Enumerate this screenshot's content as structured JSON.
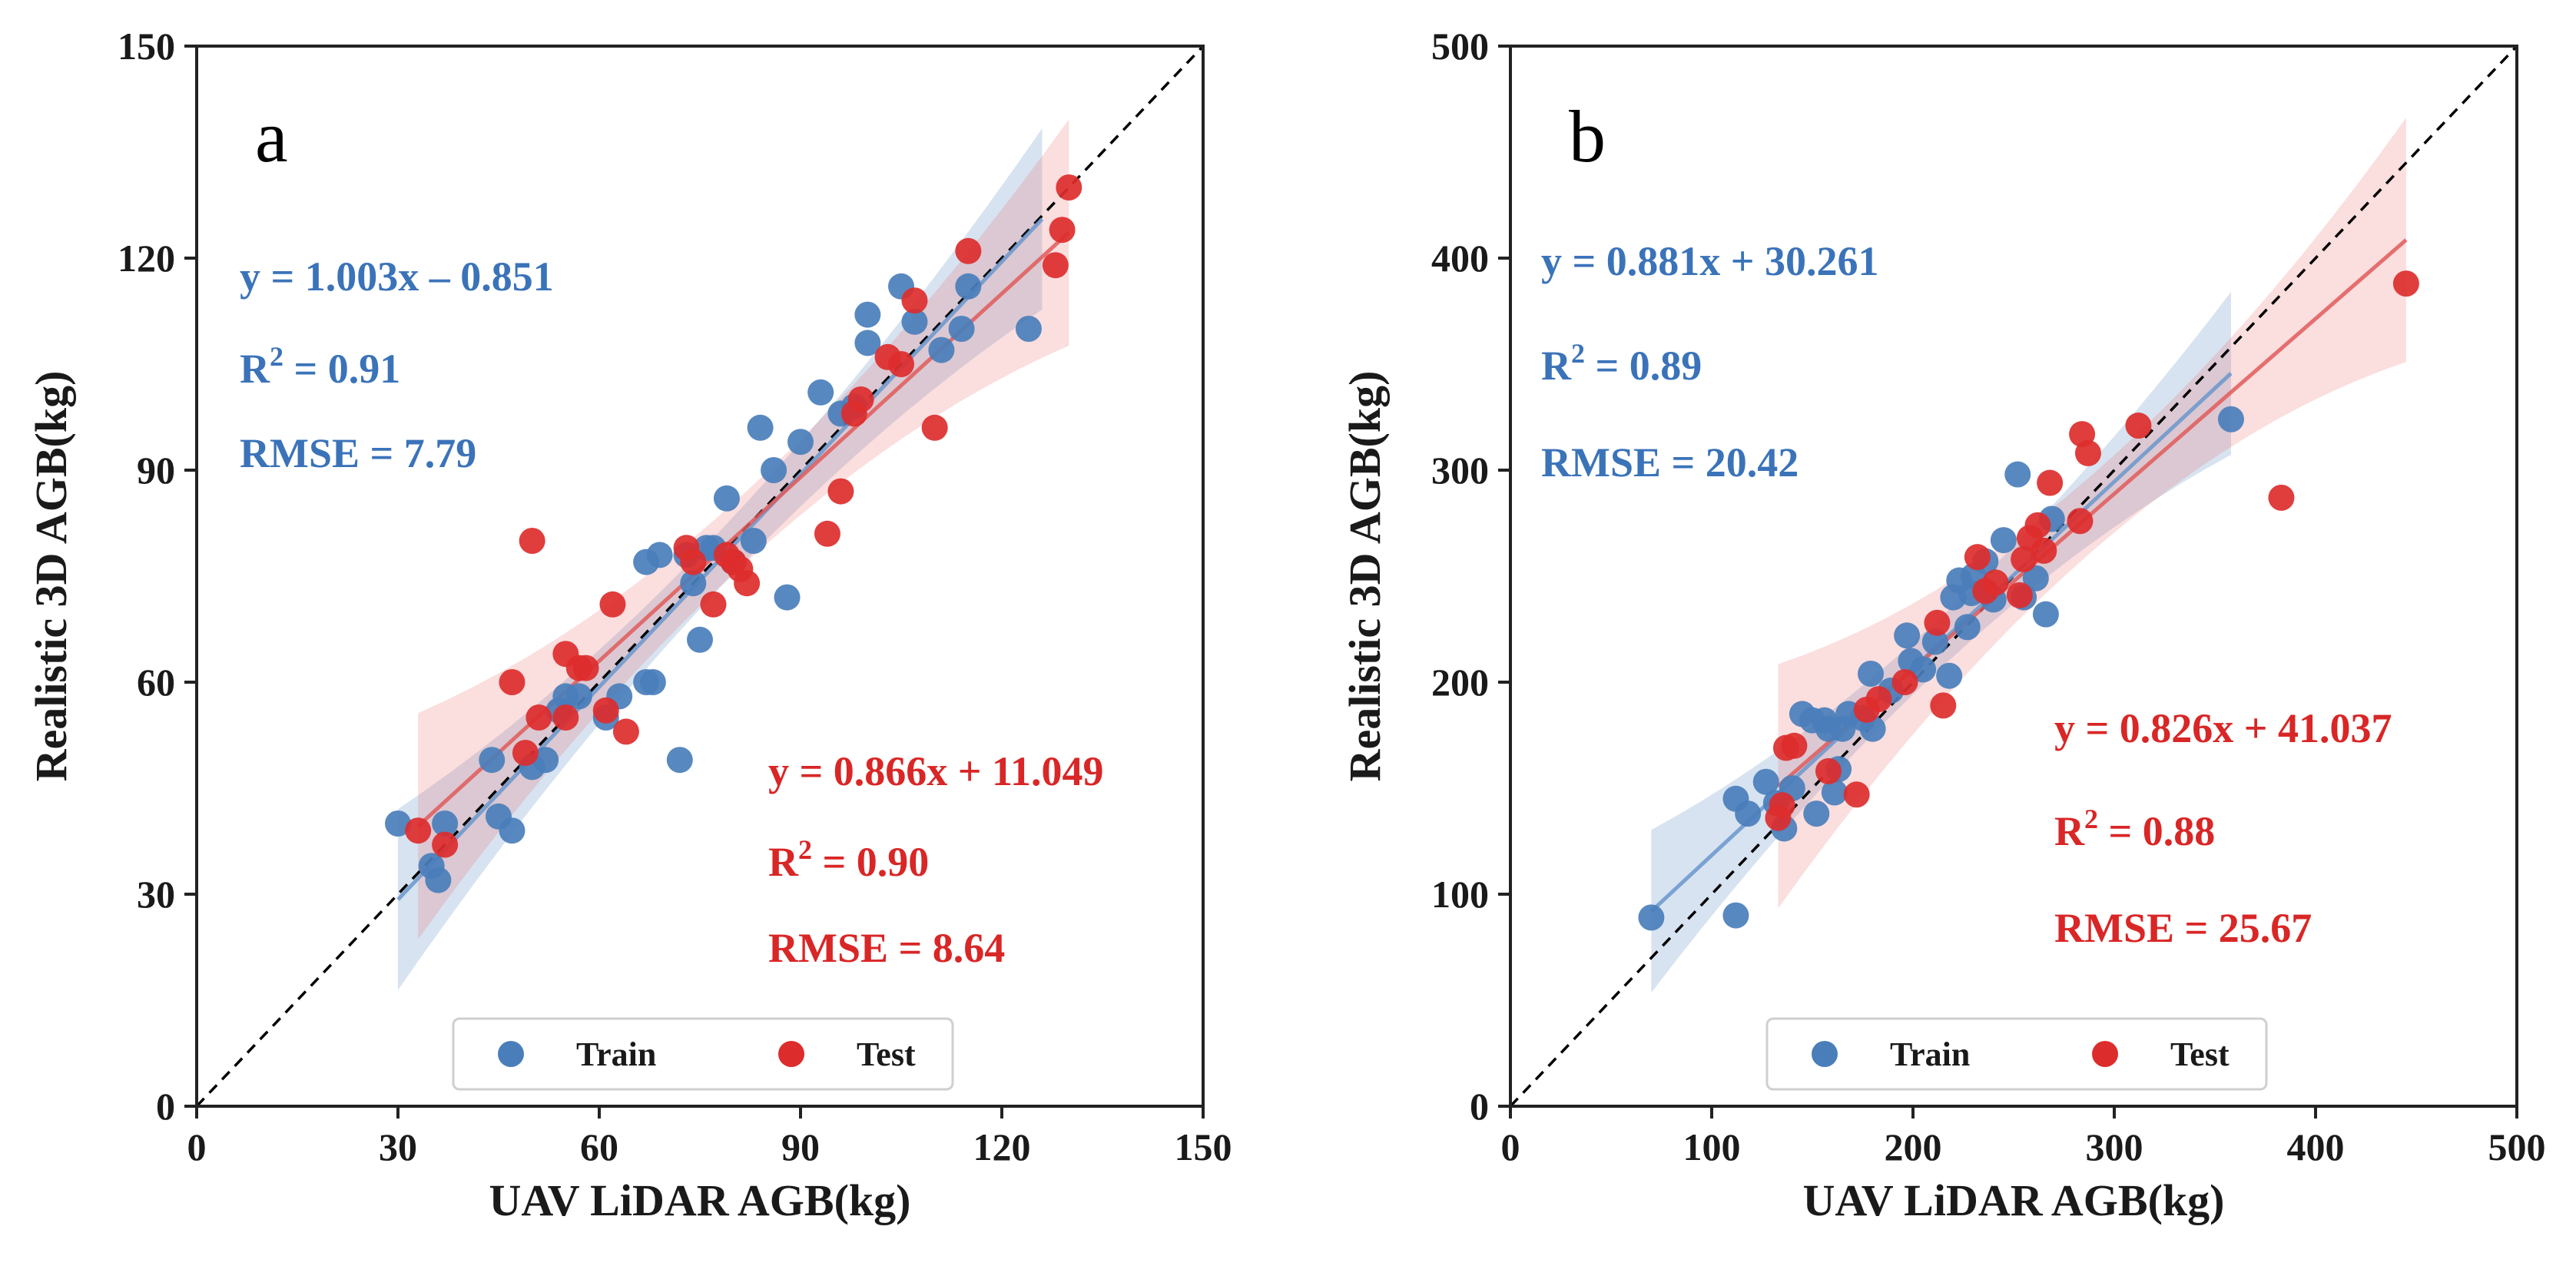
{
  "colors": {
    "train": "#4a7ebb",
    "test": "#dd2c2c",
    "train_ann": "#3b73b9",
    "test_ann": "#d92626"
  },
  "chart_data": [
    {
      "type": "scatter",
      "panel": "a",
      "xlabel": "UAV LiDAR AGB(kg)",
      "ylabel": "Realistic 3D AGB(kg)",
      "xlim": [
        0,
        150
      ],
      "ylim": [
        0,
        150
      ],
      "xticks": [
        "0",
        "30",
        "60",
        "90",
        "120",
        "150"
      ],
      "yticks": [
        "0",
        "30",
        "60",
        "90",
        "120",
        "150"
      ],
      "legend": [
        "Train",
        "Test"
      ],
      "train_annotation": {
        "equation": "y = 1.003x – 0.851",
        "r2_prefix": "R",
        "r2_sup": "2",
        "r2_value": " = 0.91",
        "rmse": "RMSE = 7.79"
      },
      "test_annotation": {
        "equation": "y = 0.866x + 11.049",
        "r2_prefix": "R",
        "r2_sup": "2",
        "r2_value": " = 0.90",
        "rmse": "RMSE = 8.64"
      },
      "train_fit": {
        "slope": 1.003,
        "intercept": -0.851,
        "x_range": [
          30,
          126
        ],
        "band": 4
      },
      "test_fit": {
        "slope": 0.866,
        "intercept": 11.049,
        "x_range": [
          33,
          130
        ],
        "band": 5
      },
      "series": [
        {
          "name": "Train",
          "points": [
            [
              30,
              40
            ],
            [
              35,
              34
            ],
            [
              36,
              32
            ],
            [
              37,
              40
            ],
            [
              44,
              49
            ],
            [
              45,
              41
            ],
            [
              47,
              39
            ],
            [
              50,
              48
            ],
            [
              52,
              49
            ],
            [
              54,
              56
            ],
            [
              57,
              58
            ],
            [
              61,
              55
            ],
            [
              63,
              58
            ],
            [
              67,
              60
            ],
            [
              67,
              77
            ],
            [
              68,
              60
            ],
            [
              69,
              78
            ],
            [
              72,
              49
            ],
            [
              73,
              78
            ],
            [
              74,
              74
            ],
            [
              75,
              66
            ],
            [
              77,
              79
            ],
            [
              79,
              86
            ],
            [
              80,
              77
            ],
            [
              83,
              80
            ],
            [
              84,
              96
            ],
            [
              86,
              90
            ],
            [
              88,
              72
            ],
            [
              90,
              94
            ],
            [
              93,
              101
            ],
            [
              96,
              98
            ],
            [
              98,
              99
            ],
            [
              100,
              112
            ],
            [
              100,
              108
            ],
            [
              105,
              116
            ],
            [
              107,
              111
            ],
            [
              111,
              107
            ],
            [
              114,
              110
            ],
            [
              115,
              116
            ],
            [
              124,
              110
            ],
            [
              55,
              58
            ],
            [
              76,
              79
            ]
          ]
        },
        {
          "name": "Test",
          "points": [
            [
              33,
              39
            ],
            [
              37,
              37
            ],
            [
              47,
              60
            ],
            [
              49,
              50
            ],
            [
              50,
              80
            ],
            [
              51,
              55
            ],
            [
              55,
              64
            ],
            [
              57,
              62
            ],
            [
              58,
              62
            ],
            [
              61,
              56
            ],
            [
              62,
              71
            ],
            [
              64,
              53
            ],
            [
              73,
              79
            ],
            [
              74,
              77
            ],
            [
              77,
              71
            ],
            [
              79,
              78
            ],
            [
              81,
              76
            ],
            [
              82,
              74
            ],
            [
              94,
              81
            ],
            [
              96,
              87
            ],
            [
              98,
              98
            ],
            [
              99,
              100
            ],
            [
              103,
              106
            ],
            [
              105,
              105
            ],
            [
              107,
              114
            ],
            [
              110,
              96
            ],
            [
              115,
              121
            ],
            [
              128,
              119
            ],
            [
              129,
              124
            ],
            [
              130,
              130
            ],
            [
              55,
              55
            ],
            [
              80,
              77
            ]
          ]
        }
      ]
    },
    {
      "type": "scatter",
      "panel": "b",
      "xlabel": "UAV LiDAR AGB(kg)",
      "ylabel": "Realistic 3D AGB(kg)",
      "xlim": [
        0,
        500
      ],
      "ylim": [
        0,
        500
      ],
      "xticks": [
        "0",
        "100",
        "200",
        "300",
        "400",
        "500"
      ],
      "yticks": [
        "0",
        "100",
        "200",
        "300",
        "400",
        "500"
      ],
      "legend": [
        "Train",
        "Test"
      ],
      "train_annotation": {
        "equation": "y = 0.881x + 30.261",
        "r2_prefix": "R",
        "r2_sup": "2",
        "r2_value": " = 0.89",
        "rmse": "RMSE = 20.42"
      },
      "test_annotation": {
        "equation": "y = 0.826x + 41.037",
        "r2_prefix": "R",
        "r2_sup": "2",
        "r2_value": " = 0.88",
        "rmse": "RMSE = 25.67"
      },
      "train_fit": {
        "slope": 0.881,
        "intercept": 30.261,
        "x_range": [
          70,
          358
        ],
        "band": 12
      },
      "test_fit": {
        "slope": 0.826,
        "intercept": 41.037,
        "x_range": [
          133,
          445
        ],
        "band": 18
      },
      "series": [
        {
          "name": "Train",
          "points": [
            [
              70,
              89
            ],
            [
              112,
              90
            ],
            [
              112,
              145
            ],
            [
              118,
              138
            ],
            [
              127,
              153
            ],
            [
              132,
              143
            ],
            [
              136,
              131
            ],
            [
              140,
              150
            ],
            [
              145,
              185
            ],
            [
              152,
              138
            ],
            [
              156,
              182
            ],
            [
              158,
              178
            ],
            [
              161,
              148
            ],
            [
              163,
              159
            ],
            [
              165,
              178
            ],
            [
              168,
              185
            ],
            [
              175,
              183
            ],
            [
              179,
              204
            ],
            [
              180,
              178
            ],
            [
              189,
              196
            ],
            [
              197,
              222
            ],
            [
              199,
              210
            ],
            [
              205,
              206
            ],
            [
              211,
              219
            ],
            [
              218,
              203
            ],
            [
              220,
              240
            ],
            [
              223,
              248
            ],
            [
              227,
              226
            ],
            [
              229,
              242
            ],
            [
              236,
              257
            ],
            [
              240,
              239
            ],
            [
              245,
              267
            ],
            [
              252,
              298
            ],
            [
              255,
              240
            ],
            [
              261,
              249
            ],
            [
              266,
              232
            ],
            [
              269,
              277
            ],
            [
              358,
              324
            ],
            [
              150,
              182
            ],
            [
              230,
              250
            ]
          ]
        },
        {
          "name": "Test",
          "points": [
            [
              133,
              136
            ],
            [
              135,
              142
            ],
            [
              137,
              169
            ],
            [
              141,
              170
            ],
            [
              158,
              158
            ],
            [
              172,
              147
            ],
            [
              177,
              187
            ],
            [
              183,
              192
            ],
            [
              196,
              200
            ],
            [
              212,
              228
            ],
            [
              215,
              189
            ],
            [
              232,
              259
            ],
            [
              236,
              243
            ],
            [
              241,
              247
            ],
            [
              253,
              241
            ],
            [
              258,
              268
            ],
            [
              262,
              274
            ],
            [
              268,
              294
            ],
            [
              283,
              276
            ],
            [
              284,
              317
            ],
            [
              287,
              308
            ],
            [
              312,
              321
            ],
            [
              383,
              287
            ],
            [
              445,
              388
            ],
            [
              255,
              258
            ],
            [
              265,
              262
            ]
          ]
        }
      ]
    }
  ]
}
